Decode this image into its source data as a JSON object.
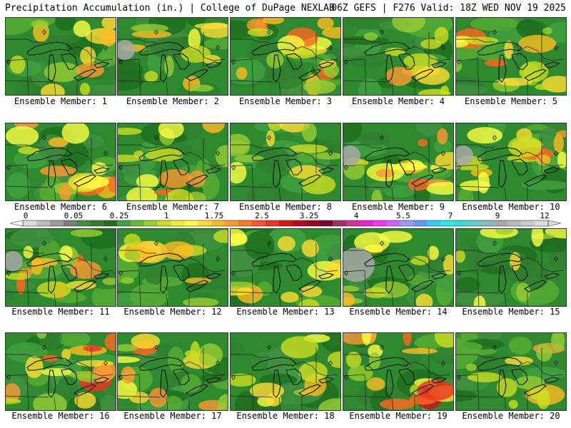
{
  "header": {
    "left_title": "Precipitation Accumulation (in.) | College of DuPage NEXLAB",
    "right_title": "06Z GEFS | F276 Valid: 18Z WED NOV 19 2025"
  },
  "colorbar": {
    "labels": [
      "0",
      "0.05",
      "0.25",
      "1",
      "1.75",
      "2.5",
      "3.25",
      "4",
      "5.5",
      "7",
      "9",
      "12"
    ],
    "colors": [
      "#dcdcdc",
      "#bdbdbd",
      "#9c9c9c",
      "#7c7c7c",
      "#3f8f3f",
      "#2f7f2f",
      "#1f6f1f",
      "#3fa03f",
      "#66bb33",
      "#99cc33",
      "#ccdd22",
      "#eeee22",
      "#ffff44",
      "#ffdd33",
      "#ffbb22",
      "#ff9933",
      "#ff7722",
      "#ff5533",
      "#ee3322",
      "#dd1111",
      "#bb0022",
      "#990022",
      "#770033",
      "#993366",
      "#cc3399",
      "#ee22cc",
      "#ff33ff",
      "#cc66ff",
      "#9999ff",
      "#6699ff",
      "#33ccff",
      "#22eeee",
      "#33dddd",
      "#66cccc",
      "#88bbbb",
      "#aaaaaa",
      "#bcbcbc",
      "#cccccc",
      "#dddddd"
    ]
  },
  "members": [
    {
      "label": "Ensemble Member: 1",
      "hot": 2
    },
    {
      "label": "Ensemble Member: 2",
      "hot": 2
    },
    {
      "label": "Ensemble Member: 3",
      "hot": 4
    },
    {
      "label": "Ensemble Member: 4",
      "hot": 2
    },
    {
      "label": "Ensemble Member: 5",
      "hot": 3
    },
    {
      "label": "Ensemble Member: 6",
      "hot": 3
    },
    {
      "label": "Ensemble Member: 7",
      "hot": 3
    },
    {
      "label": "Ensemble Member: 8",
      "hot": 2
    },
    {
      "label": "Ensemble Member: 9",
      "hot": 3
    },
    {
      "label": "Ensemble Member: 10",
      "hot": 3
    },
    {
      "label": "Ensemble Member: 11",
      "hot": 3
    },
    {
      "label": "Ensemble Member: 12",
      "hot": 2
    },
    {
      "label": "Ensemble Member: 13",
      "hot": 2
    },
    {
      "label": "Ensemble Member: 14",
      "hot": 2
    },
    {
      "label": "Ensemble Member: 15",
      "hot": 1
    },
    {
      "label": "Ensemble Member: 16",
      "hot": 4
    },
    {
      "label": "Ensemble Member: 17",
      "hot": 3
    },
    {
      "label": "Ensemble Member: 18",
      "hot": 2
    },
    {
      "label": "Ensemble Member: 19",
      "hot": 4
    },
    {
      "label": "Ensemble Member: 20",
      "hot": 2
    }
  ]
}
